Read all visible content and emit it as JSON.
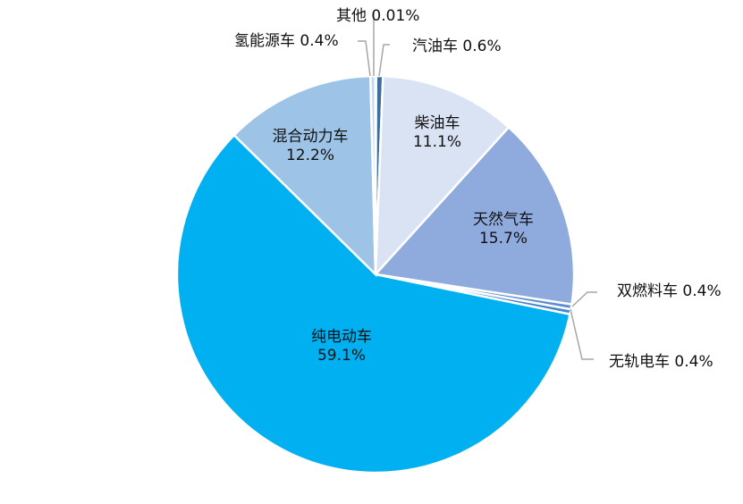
{
  "chart_data": {
    "type": "pie",
    "slices": [
      {
        "label": "汽油车",
        "value": 0.6,
        "display": "0.6%",
        "color": "#3D6E9E"
      },
      {
        "label": "柴油车",
        "value": 11.1,
        "display": "11.1%",
        "color": "#DAE3F3"
      },
      {
        "label": "天然气车",
        "value": 15.7,
        "display": "15.7%",
        "color": "#8FAADC"
      },
      {
        "label": "双燃料车",
        "value": 0.4,
        "display": "0.4%",
        "color": "#5B8ED0"
      },
      {
        "label": "无轨电车",
        "value": 0.4,
        "display": "0.4%",
        "color": "#4A86C8"
      },
      {
        "label": "纯电动车",
        "value": 59.1,
        "display": "59.1%",
        "color": "#00B0F0"
      },
      {
        "label": "混合动力车",
        "value": 12.2,
        "display": "12.2%",
        "color": "#9DC3E6"
      },
      {
        "label": "氢能源车",
        "value": 0.4,
        "display": "0.4%",
        "color": "#C5DAF1"
      },
      {
        "label": "其他",
        "value": 0.01,
        "display": "0.01%",
        "color": "#BDD7EE"
      }
    ],
    "legend": "none",
    "start_angle": "12 o'clock, clockwise"
  }
}
